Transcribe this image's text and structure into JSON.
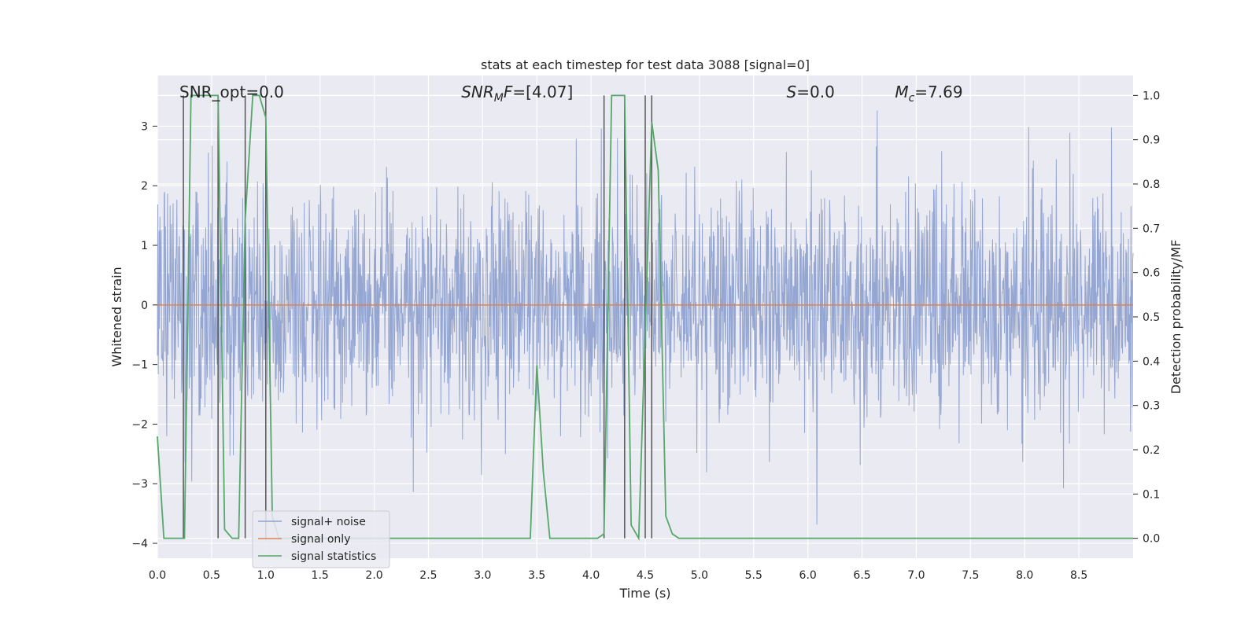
{
  "chart_data": {
    "type": "line",
    "title": "stats at each timestep for test data 3088 [signal=0]",
    "xlabel": "Time (s)",
    "ylabel_left": "Whitened strain",
    "ylabel_right": "Detection probability/MF",
    "xlim": [
      0.0,
      9.0
    ],
    "ylim_left": [
      -4.25,
      3.85
    ],
    "ylim_right": [
      -0.045,
      1.045
    ],
    "x_ticks": [
      "0.0",
      "0.5",
      "1.0",
      "1.5",
      "2.0",
      "2.5",
      "3.0",
      "3.5",
      "4.0",
      "4.5",
      "5.0",
      "5.5",
      "6.0",
      "6.5",
      "7.0",
      "7.5",
      "8.0",
      "8.5"
    ],
    "y_left_ticks": [
      "3",
      "2",
      "1",
      "0",
      "−1",
      "−2",
      "−3",
      "−4"
    ],
    "y_left_tick_values": [
      3,
      2,
      1,
      0,
      -1,
      -2,
      -3,
      -4
    ],
    "y_right_ticks": [
      "1.0",
      "0.9",
      "0.8",
      "0.7",
      "0.6",
      "0.5",
      "0.4",
      "0.3",
      "0.2",
      "0.1",
      "0.0"
    ],
    "y_right_tick_values": [
      1.0,
      0.9,
      0.8,
      0.7,
      0.6,
      0.5,
      0.4,
      0.3,
      0.2,
      0.1,
      0.0
    ],
    "grid": true,
    "legend_position": "lower-left",
    "annotations": [
      {
        "text": "SNR_opt=0.0",
        "x": 0.2
      },
      {
        "text": "SNR_MF=[4.07]",
        "x": 2.6,
        "math": true,
        "base": "SNR",
        "sub": "M",
        "rest": "F=[4.07]"
      },
      {
        "text": "S=0.0",
        "x": 5.6,
        "math": true,
        "base": "S",
        "sub": "",
        "rest": "=0.0"
      },
      {
        "text": "M_c=7.69",
        "x": 6.6,
        "math": true,
        "base": "M",
        "sub": "c",
        "rest": "=7.69"
      }
    ],
    "series": [
      {
        "name": "signal+ noise",
        "color": "#8fa2cf",
        "axis": "left",
        "description_values": "dense noisy whitened strain, roughly within [-3.2, 3.5]",
        "noise_std": 0.95,
        "clip": [
          -4.0,
          3.5
        ]
      },
      {
        "name": "signal only",
        "color": "#dd8452",
        "axis": "left",
        "x": [
          0.0,
          9.0
        ],
        "values": [
          0.0,
          0.0
        ]
      },
      {
        "name": "signal statistics",
        "color": "#55a868",
        "axis": "right",
        "x": [
          0.0,
          0.06,
          0.25,
          0.31,
          0.56,
          0.62,
          0.69,
          0.75,
          0.81,
          0.88,
          0.94,
          1.0,
          1.06,
          1.12,
          3.44,
          3.5,
          3.56,
          3.62,
          4.06,
          4.12,
          4.19,
          4.31,
          4.37,
          4.44,
          4.56,
          4.62,
          4.69,
          4.75,
          4.81,
          4.88,
          9.0
        ],
        "values": [
          0.23,
          0.0,
          0.0,
          1.0,
          1.0,
          0.02,
          0.0,
          0.0,
          0.72,
          1.0,
          1.0,
          0.95,
          0.05,
          0.0,
          0.0,
          0.39,
          0.15,
          0.0,
          0.0,
          0.01,
          1.0,
          1.0,
          0.03,
          0.0,
          0.94,
          0.83,
          0.05,
          0.01,
          0.0,
          0.0,
          0.0
        ]
      }
    ],
    "vlines": {
      "color": "#555555",
      "x": [
        0.24,
        0.56,
        0.81,
        1.0,
        4.12,
        4.31,
        4.5,
        4.56
      ],
      "ymin_right": 0.0,
      "ymax_right": 1.0
    }
  }
}
